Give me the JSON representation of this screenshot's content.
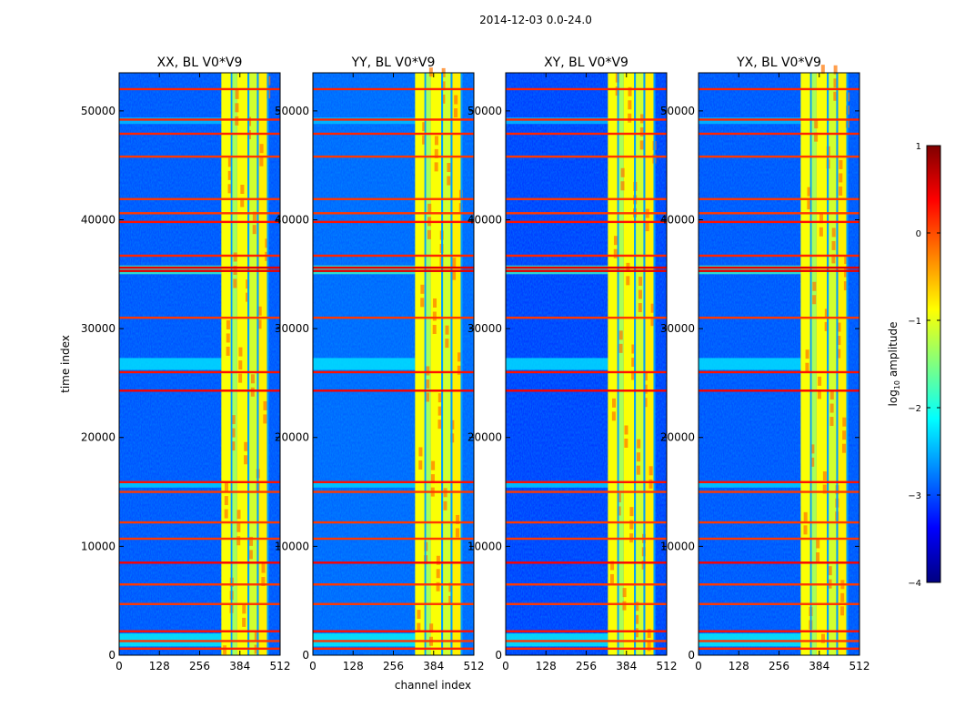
{
  "chart_data": {
    "type": "heatmap",
    "title": "2014-12-03 0.0-24.0",
    "xlabel": "channel index",
    "ylabel": "time index",
    "xlim": [
      0,
      512
    ],
    "ylim": [
      0,
      53500
    ],
    "xticks": [
      0,
      128,
      256,
      384,
      512
    ],
    "yticks": [
      0,
      10000,
      20000,
      30000,
      40000,
      50000
    ],
    "colorbar": {
      "label": "log10 amplitude",
      "label_prefix": "log",
      "label_sub": "10",
      "label_suffix": " amplitude",
      "range": [
        -4,
        1
      ],
      "ticks": [
        1,
        0,
        -1,
        -2,
        -3,
        -4
      ],
      "tick_labels": [
        "1",
        "0",
        "−1",
        "−2",
        "−3",
        "−4"
      ],
      "colormap": "jet"
    },
    "panels": [
      {
        "title": "XX, BL V0*V9",
        "background_level": -3.0
      },
      {
        "title": "YY, BL V0*V9",
        "background_level": -2.9
      },
      {
        "title": "XY, BL V0*V9",
        "background_level": -3.1
      },
      {
        "title": "YX, BL V0*V9",
        "background_level": -3.0
      }
    ],
    "bright_channel_bands": [
      {
        "start": 325,
        "end": 355,
        "level": -0.9
      },
      {
        "start": 355,
        "end": 375,
        "level": -1.3
      },
      {
        "start": 375,
        "end": 410,
        "level": -0.9
      },
      {
        "start": 410,
        "end": 440,
        "level": -1.1
      },
      {
        "start": 440,
        "end": 475,
        "level": -0.8
      }
    ],
    "band_gaps": [
      {
        "start": 355,
        "end": 360
      },
      {
        "start": 408,
        "end": 414
      },
      {
        "start": 438,
        "end": 444
      },
      {
        "start": 470,
        "end": 476
      }
    ],
    "flagged_time_rows": [
      {
        "t": 600,
        "level": 0.2
      },
      {
        "t": 1300,
        "level": 0.1
      },
      {
        "t": 2200,
        "level": 0.3
      },
      {
        "t": 4700,
        "level": 0.1
      },
      {
        "t": 6500,
        "level": 0.1
      },
      {
        "t": 8500,
        "level": 0.4
      },
      {
        "t": 10700,
        "level": 0.1
      },
      {
        "t": 12200,
        "level": 0.1
      },
      {
        "t": 15000,
        "level": 0.1
      },
      {
        "t": 15900,
        "level": 0.3
      },
      {
        "t": 24300,
        "level": 0.4
      },
      {
        "t": 26000,
        "level": 0.3
      },
      {
        "t": 31000,
        "level": 0.1
      },
      {
        "t": 35300,
        "level": 0.5
      },
      {
        "t": 35600,
        "level": 0.5
      },
      {
        "t": 36700,
        "level": 0.2
      },
      {
        "t": 39800,
        "level": 0.3
      },
      {
        "t": 40600,
        "level": 0.1
      },
      {
        "t": 41900,
        "level": 0.1
      },
      {
        "t": 45800,
        "level": 0.1
      },
      {
        "t": 47900,
        "level": 0.2
      },
      {
        "t": 49200,
        "level": 0.2
      },
      {
        "t": 52000,
        "level": 0.2
      }
    ],
    "elevated_time_bands": [
      {
        "t0": 800,
        "t1": 2000,
        "level": -2.1
      },
      {
        "t0": 15400,
        "t1": 16000,
        "level": -2.3
      },
      {
        "t0": 26200,
        "t1": 27300,
        "level": -2.2
      },
      {
        "t0": 35000,
        "t1": 35800,
        "level": -1.8
      },
      {
        "t0": 48800,
        "t1": 49400,
        "level": -2.4
      }
    ]
  }
}
